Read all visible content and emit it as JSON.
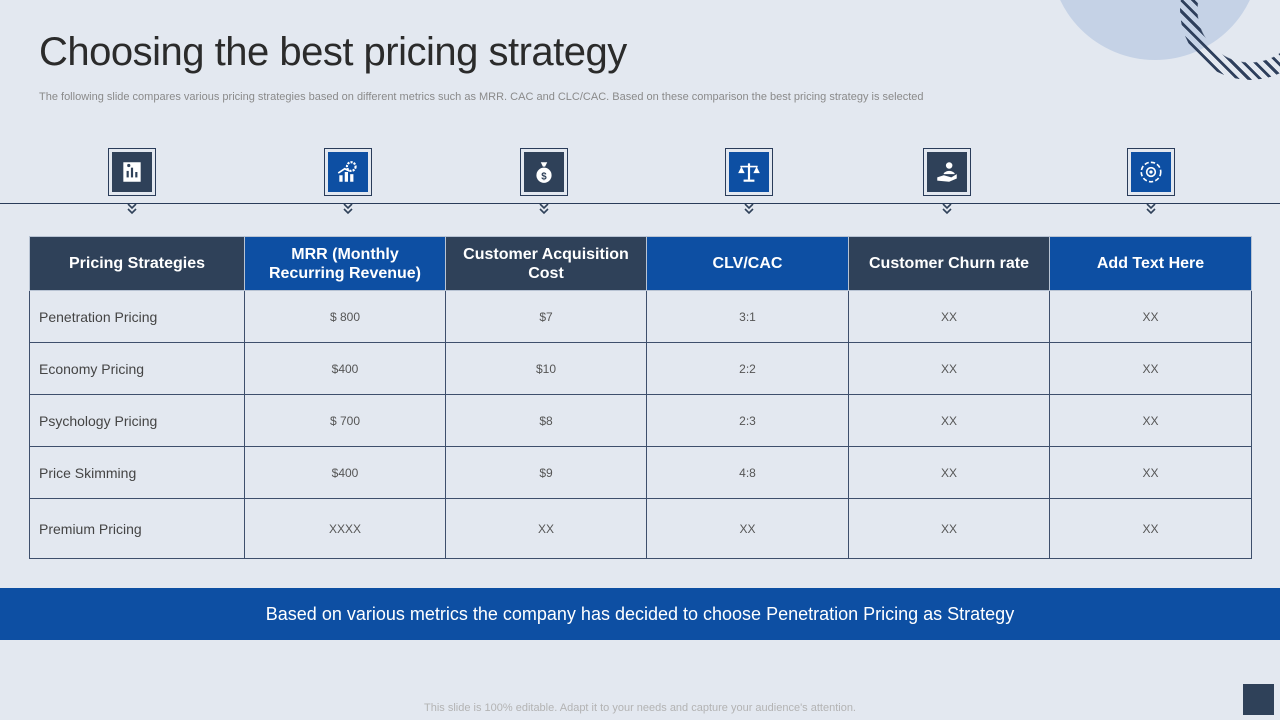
{
  "slide": {
    "title": "Choosing the best pricing strategy",
    "subtitle": "The following slide compares various pricing strategies based on different metrics such as MRR. CAC and CLC/CAC. Based on these comparison the best pricing strategy is selected"
  },
  "icons": [
    {
      "name": "report-clipboard-icon",
      "style": "dark"
    },
    {
      "name": "growth-chart-gear-icon",
      "style": "blue"
    },
    {
      "name": "money-bag-icon",
      "style": "dark"
    },
    {
      "name": "balance-scale-icon",
      "style": "blue"
    },
    {
      "name": "hand-support-icon",
      "style": "dark"
    },
    {
      "name": "target-cycle-icon",
      "style": "blue"
    }
  ],
  "table": {
    "headers": [
      "Pricing Strategies",
      "MRR (Monthly Recurring Revenue)",
      "Customer Acquisition  Cost",
      "CLV/CAC",
      "Customer Churn rate",
      "Add Text Here"
    ],
    "rows": [
      [
        "Penetration Pricing",
        "$ 800",
        "$7",
        "3:1",
        "XX",
        "XX"
      ],
      [
        "Economy Pricing",
        "$400",
        "$10",
        "2:2",
        "XX",
        "XX"
      ],
      [
        "Psychology Pricing",
        "$ 700",
        "$8",
        "2:3",
        "XX",
        "XX"
      ],
      [
        "Price Skimming",
        "$400",
        "$9",
        "4:8",
        "XX",
        "XX"
      ],
      [
        "Premium Pricing",
        "XXXX",
        "XX",
        "XX",
        "XX",
        "XX"
      ]
    ]
  },
  "banner": "Based on various metrics the company has decided to choose Penetration Pricing as Strategy",
  "footer": "This slide is 100% editable. Adapt it to your needs and capture your audience's attention.",
  "colors": {
    "dark": "#2f4159",
    "blue": "#0d4fa3",
    "background": "#e3e8f0"
  }
}
